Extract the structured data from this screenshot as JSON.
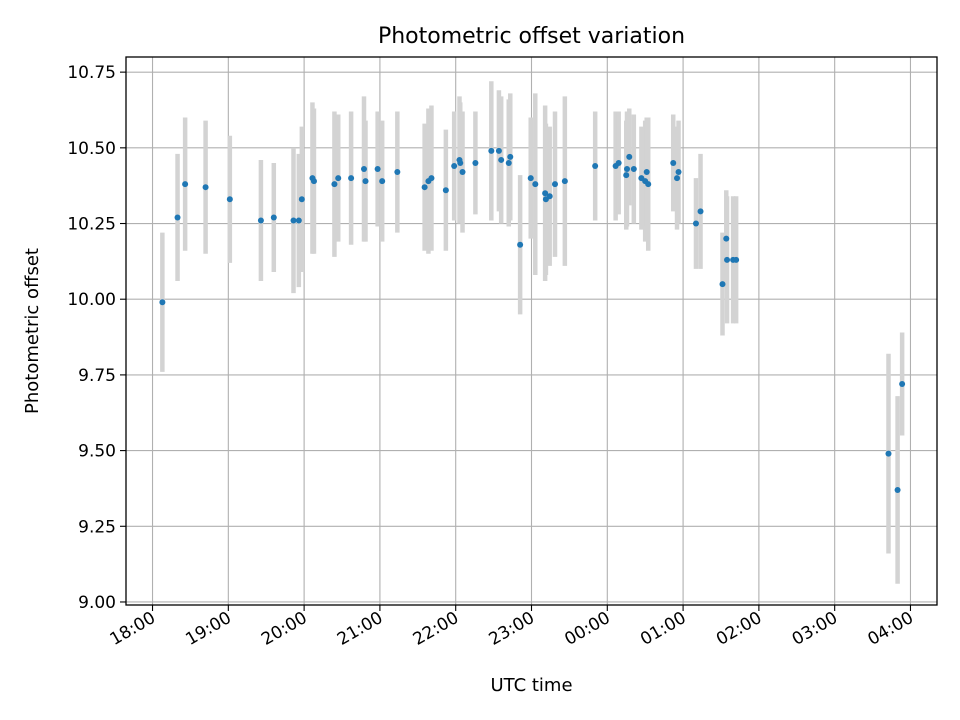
{
  "chart_data": {
    "type": "scatter",
    "title": "Photometric offset variation",
    "xlabel": "UTC time",
    "ylabel": "Photometric offset",
    "xticks": [
      "18:00",
      "19:00",
      "20:00",
      "21:00",
      "22:00",
      "23:00",
      "00:00",
      "01:00",
      "02:00",
      "03:00",
      "04:00"
    ],
    "yticks": [
      "9.00",
      "9.25",
      "9.50",
      "9.75",
      "10.00",
      "10.25",
      "10.50",
      "10.75"
    ],
    "x_unit": "hours since 18:00 UTC",
    "xlim": [
      -0.35,
      10.35
    ],
    "ylim": [
      8.99,
      10.8
    ],
    "grid": true,
    "colors": {
      "points": "#1f77b4",
      "errorbars": "#d3d3d3",
      "grid": "#b0b0b0"
    },
    "points": [
      [
        0.13,
        9.99,
        0.23
      ],
      [
        0.33,
        10.27,
        0.21
      ],
      [
        0.43,
        10.38,
        0.22
      ],
      [
        0.7,
        10.37,
        0.22
      ],
      [
        1.02,
        10.33,
        0.21
      ],
      [
        1.43,
        10.26,
        0.2
      ],
      [
        1.6,
        10.27,
        0.18
      ],
      [
        1.86,
        10.26,
        0.24
      ],
      [
        1.93,
        10.26,
        0.22
      ],
      [
        1.97,
        10.33,
        0.24
      ],
      [
        2.11,
        10.4,
        0.25
      ],
      [
        2.13,
        10.39,
        0.24
      ],
      [
        2.4,
        10.38,
        0.24
      ],
      [
        2.45,
        10.4,
        0.21
      ],
      [
        2.62,
        10.4,
        0.22
      ],
      [
        2.79,
        10.43,
        0.24
      ],
      [
        2.81,
        10.39,
        0.2
      ],
      [
        2.97,
        10.43,
        0.19
      ],
      [
        3.03,
        10.39,
        0.2
      ],
      [
        3.23,
        10.42,
        0.2
      ],
      [
        3.59,
        10.37,
        0.21
      ],
      [
        3.64,
        10.39,
        0.24
      ],
      [
        3.68,
        10.4,
        0.24
      ],
      [
        3.87,
        10.36,
        0.2
      ],
      [
        3.98,
        10.44,
        0.18
      ],
      [
        4.05,
        10.46,
        0.21
      ],
      [
        4.06,
        10.45,
        0.2
      ],
      [
        4.09,
        10.42,
        0.2
      ],
      [
        4.26,
        10.45,
        0.17
      ],
      [
        4.47,
        10.49,
        0.23
      ],
      [
        4.57,
        10.49,
        0.2
      ],
      [
        4.6,
        10.46,
        0.21
      ],
      [
        4.7,
        10.45,
        0.21
      ],
      [
        4.72,
        10.47,
        0.21
      ],
      [
        4.85,
        10.18,
        0.23
      ],
      [
        4.99,
        10.4,
        0.2
      ],
      [
        5.05,
        10.38,
        0.3
      ],
      [
        5.18,
        10.35,
        0.29
      ],
      [
        5.19,
        10.33,
        0.25
      ],
      [
        5.24,
        10.34,
        0.23
      ],
      [
        5.31,
        10.38,
        0.24
      ],
      [
        5.44,
        10.39,
        0.28
      ],
      [
        5.84,
        10.44,
        0.18
      ],
      [
        6.11,
        10.44,
        0.18
      ],
      [
        6.15,
        10.45,
        0.17
      ],
      [
        6.25,
        10.41,
        0.18
      ],
      [
        6.26,
        10.43,
        0.19
      ],
      [
        6.29,
        10.47,
        0.16
      ],
      [
        6.35,
        10.43,
        0.18
      ],
      [
        6.45,
        10.4,
        0.17
      ],
      [
        6.5,
        10.39,
        0.2
      ],
      [
        6.52,
        10.42,
        0.18
      ],
      [
        6.54,
        10.38,
        0.22
      ],
      [
        6.87,
        10.45,
        0.16
      ],
      [
        6.92,
        10.4,
        0.17
      ],
      [
        6.94,
        10.42,
        0.17
      ],
      [
        7.17,
        10.25,
        0.15
      ],
      [
        7.23,
        10.29,
        0.19
      ],
      [
        7.52,
        10.05,
        0.17
      ],
      [
        7.57,
        10.2,
        0.16
      ],
      [
        7.58,
        10.13,
        0.21
      ],
      [
        7.66,
        10.13,
        0.21
      ],
      [
        7.7,
        10.13,
        0.21
      ],
      [
        9.71,
        9.49,
        0.33
      ],
      [
        9.83,
        9.37,
        0.31
      ],
      [
        9.89,
        9.72,
        0.17
      ]
    ]
  }
}
